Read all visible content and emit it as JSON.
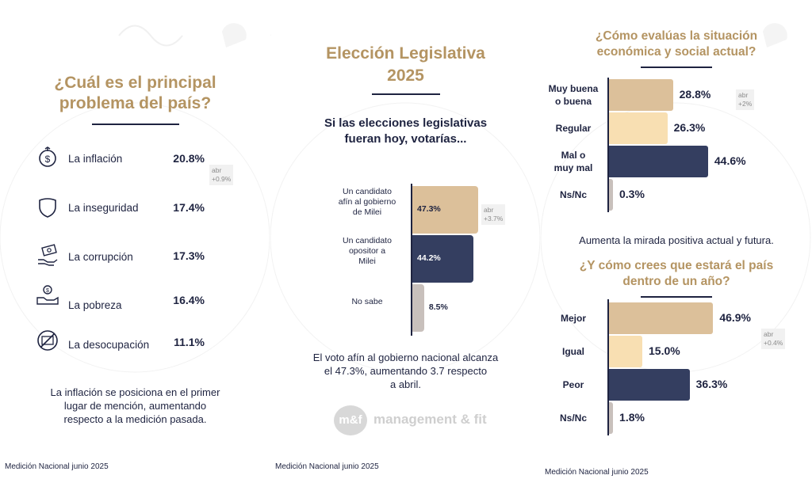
{
  "panel1": {
    "title_line1": "¿Cuál es el principal",
    "title_line2": "problema del país?",
    "items": [
      {
        "icon": "money-bag-icon",
        "label": "La inflación",
        "value": "20.8%"
      },
      {
        "icon": "shield-icon",
        "label": "La inseguridad",
        "value": "17.4%"
      },
      {
        "icon": "bribe-hand-icon",
        "label": "La corrupción",
        "value": "17.3%"
      },
      {
        "icon": "coin-hand-icon",
        "label": "La pobreza",
        "value": "16.4%"
      },
      {
        "icon": "no-work-icon",
        "label": "La desocupación",
        "value": "11.1%"
      }
    ],
    "abr_line1": "abr",
    "abr_line2": "+0.9%",
    "note_line1": "La inflación se posiciona en el primer",
    "note_line2": "lugar de mención, aumentando",
    "note_line3": "respecto a la medición pasada.",
    "footer": "Medición Nacional junio 2025"
  },
  "panel2": {
    "title_line1": "Elección Legislativa",
    "title_line2": "2025",
    "subtitle_line1": "Si las elecciones legislativas",
    "subtitle_line2": "fueran hoy, votarías...",
    "abr_line1": "abr",
    "abr_line2": "+3.7%",
    "note_line1": "El voto afín al gobierno nacional alcanza",
    "note_line2": "el 47.3%, aumentando 3.7 respecto",
    "note_line3": "a abril.",
    "logo_mark": "m&f",
    "logo_text": "management & fit",
    "footer": "Medición Nacional junio 2025"
  },
  "panel3": {
    "q1_line1": "¿Cómo evalúas la situación",
    "q1_line2": "económica y social actual?",
    "q1_abr_line1": "abr",
    "q1_abr_line2": "+2%",
    "middle_note": "Aumenta la mirada positiva actual y futura.",
    "q2_line1": "¿Y cómo crees que estará el país",
    "q2_line2": "dentro de un año?",
    "q2_abr_line1": "abr",
    "q2_abr_line2": "+0.4%",
    "footer": "Medición Nacional junio 2025"
  },
  "colors": {
    "gold": "#b49462",
    "navy": "#343e60",
    "tan": "#dcc09a",
    "cream": "#f8dfb2",
    "gray": "#c8c0bc"
  },
  "chart_data": [
    {
      "type": "table",
      "title": "¿Cuál es el principal problema del país?",
      "categories": [
        "La inflación",
        "La inseguridad",
        "La corrupción",
        "La pobreza",
        "La desocupación"
      ],
      "values": [
        20.8,
        17.4,
        17.3,
        16.4,
        11.1
      ]
    },
    {
      "type": "bar",
      "title": "Si las elecciones legislativas fueran hoy, votarías...",
      "categories": [
        {
          "line1": "Un candidato",
          "line2": "afín al gobierno",
          "line3": "de Milei"
        },
        {
          "line1": "Un candidato",
          "line2": "opositor a",
          "line3": "Milei"
        },
        {
          "line1": "No sabe",
          "line2": "",
          "line3": ""
        }
      ],
      "values": [
        47.3,
        44.2,
        8.5
      ],
      "labels": [
        "47.3%",
        "44.2%",
        "8.5%"
      ],
      "colors": [
        "#dcc09a",
        "#343e60",
        "#c8c0bc"
      ]
    },
    {
      "type": "bar",
      "title": "¿Cómo evalúas la situación económica y social actual?",
      "categories": [
        {
          "line1": "Muy buena",
          "line2": "o buena"
        },
        {
          "line1": "Regular",
          "line2": ""
        },
        {
          "line1": "Mal o",
          "line2": "muy mal"
        },
        {
          "line1": "Ns/Nc",
          "line2": ""
        }
      ],
      "values": [
        28.8,
        26.3,
        44.6,
        0.3
      ],
      "labels": [
        "28.8%",
        "26.3%",
        "44.6%",
        "0.3%"
      ],
      "colors": [
        "#dcc09a",
        "#f8dfb2",
        "#343e60",
        "#c8c0bc"
      ]
    },
    {
      "type": "bar",
      "title": "¿Y cómo crees que estará el país dentro de un año?",
      "categories": [
        {
          "line1": "Mejor",
          "line2": ""
        },
        {
          "line1": "Igual",
          "line2": ""
        },
        {
          "line1": "Peor",
          "line2": ""
        },
        {
          "line1": "Ns/Nc",
          "line2": ""
        }
      ],
      "values": [
        46.9,
        15.0,
        36.3,
        1.8
      ],
      "labels": [
        "46.9%",
        "15.0%",
        "36.3%",
        "1.8%"
      ],
      "colors": [
        "#dcc09a",
        "#f8dfb2",
        "#343e60",
        "#c8c0bc"
      ]
    }
  ]
}
